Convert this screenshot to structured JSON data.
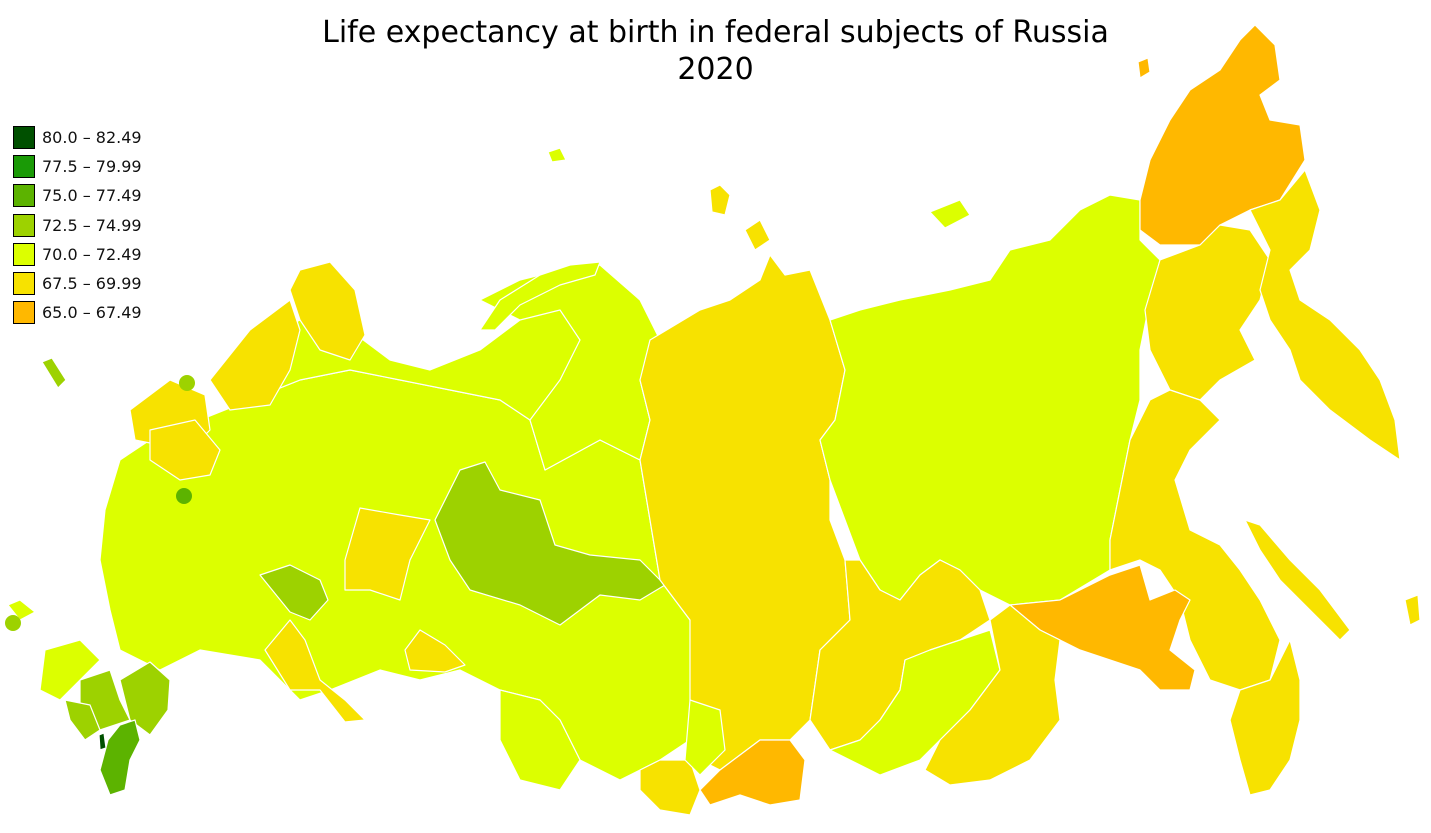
{
  "title": "Life expectancy at birth in federal subjects of Russia",
  "subtitle": "2020",
  "legend": [
    {
      "label": "80.0 – 82.49",
      "color": "#005000"
    },
    {
      "label": "77.5 – 79.99",
      "color": "#1a9a06"
    },
    {
      "label": "75.0 – 77.49",
      "color": "#5cb300"
    },
    {
      "label": "72.5 – 74.99",
      "color": "#9dd200"
    },
    {
      "label": "70.0 – 72.49",
      "color": "#dcff00"
    },
    {
      "label": "67.5 – 69.99",
      "color": "#f7e200"
    },
    {
      "label": "65.0 – 67.49",
      "color": "#ffb800"
    }
  ],
  "region_colors": {
    "c80": "#005000",
    "c775": "#1a9a06",
    "c75": "#5cb300",
    "c725": "#9dd200",
    "c70": "#dcff00",
    "c675": "#f7e200",
    "c65": "#ffb800"
  }
}
